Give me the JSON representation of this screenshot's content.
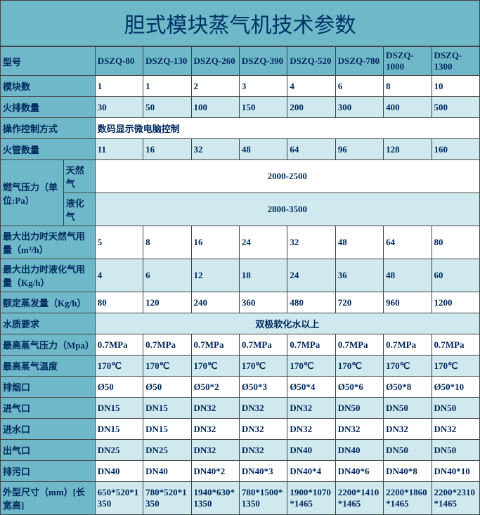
{
  "title": "胆式模块蒸气机技术参数",
  "headers": [
    "型号",
    "DSZQ-80",
    "DSZQ-130",
    "DSZQ-260",
    "DSZQ-390",
    "DSZQ-520",
    "DSZQ-780",
    "DSZQ-1000",
    "DSZQ-1300"
  ],
  "rows": {
    "modules": {
      "label": "模块数",
      "v": [
        "1",
        "1",
        "2",
        "3",
        "4",
        "6",
        "8",
        "10"
      ]
    },
    "fire_rows": {
      "label": "火排数量",
      "v": [
        "30",
        "50",
        "100",
        "150",
        "200",
        "300",
        "400",
        "500"
      ]
    },
    "control": {
      "label": "操作控制方式",
      "merged": "数码显示微电脑控制"
    },
    "fire_tubes": {
      "label": "火管数量",
      "v": [
        "11",
        "16",
        "32",
        "48",
        "64",
        "96",
        "128",
        "160"
      ]
    },
    "gas_pressure": {
      "label": "燃气压力（单位:Pa）",
      "sub1": {
        "label": "天然气",
        "merged": "2000-2500"
      },
      "sub2": {
        "label": "液化气",
        "merged": "2800-3500"
      }
    },
    "max_ng": {
      "label": "最大出力时天然气用量（m³/h）",
      "v": [
        "5",
        "8",
        "16",
        "24",
        "32",
        "48",
        "64",
        "80"
      ]
    },
    "max_lpg": {
      "label": "最大出力时液化气用量（Kg/h）",
      "v": [
        "4",
        "6",
        "12",
        "18",
        "24",
        "36",
        "48",
        "60"
      ]
    },
    "rated_steam": {
      "label": "额定蒸发量（Kg/h）",
      "v": [
        "80",
        "120",
        "240",
        "360",
        "480",
        "720",
        "960",
        "1200"
      ]
    },
    "water_req": {
      "label": "水质要求",
      "merged": "双极软化水以上"
    },
    "max_p": {
      "label": "最高蒸气压力（Mpa）",
      "v": [
        "0.7MPa",
        "0.7MPa",
        "0.7MPa",
        "0.7MPa",
        "0.7MPa",
        "0.7MPa",
        "0.7MPa",
        "0.7MPa"
      ]
    },
    "max_t": {
      "label": "最高蒸气温度",
      "v": [
        "170℃",
        "170℃",
        "170℃",
        "170℃",
        "170℃",
        "170℃",
        "170℃",
        "170℃"
      ]
    },
    "exhaust": {
      "label": "排烟口",
      "v": [
        "Ø50",
        "Ø50",
        "Ø50*2",
        "Ø50*3",
        "Ø50*4",
        "Ø50*6",
        "Ø50*8",
        "Ø50*10"
      ]
    },
    "gas_in": {
      "label": "进气口",
      "v": [
        "DN15",
        "DN15",
        "DN32",
        "DN32",
        "DN32",
        "DN50",
        "DN50",
        "DN50"
      ]
    },
    "water_in": {
      "label": "进水口",
      "v": [
        "DN15",
        "DN15",
        "DN32",
        "DN32",
        "DN32",
        "DN32",
        "DN32",
        "DN32"
      ]
    },
    "gas_out": {
      "label": "出气口",
      "v": [
        "DN25",
        "DN25",
        "DN32",
        "DN32",
        "DN40",
        "DN40",
        "DN50",
        "DN50"
      ]
    },
    "drain": {
      "label": "排污口",
      "v": [
        "DN40",
        "DN40",
        "DN40*2",
        "DN40*3",
        "DN40*4",
        "DN40*6",
        "DN40*8",
        "DN40*10"
      ]
    },
    "dims": {
      "label": "外型尺寸（mm）[长宽高]",
      "v": [
        "650*520*1350",
        "780*520*1350",
        "1940*630*1350",
        "780*1500*1350",
        "1900*1070*1465",
        "2200*1410*1465",
        "2200*1860*1465",
        "2200*2310*1465"
      ]
    }
  },
  "styling": {
    "title_bg": "#6fb8c9",
    "title_fg": "#003366",
    "title_size": 30,
    "header_bg": "#6fb8c9",
    "header_fg": "#00295e",
    "row_alt_bg": [
      "#cfe9ee",
      "#ffffff"
    ],
    "cell_fg": "#00295e",
    "border": "#444444",
    "font_size": 13
  }
}
